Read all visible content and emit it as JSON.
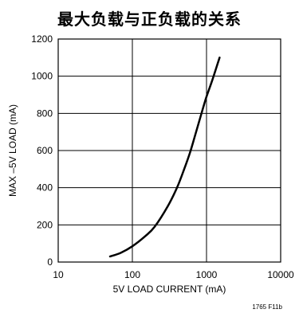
{
  "chart_data": {
    "type": "line",
    "title": "最大负载与正负载的关系",
    "xlabel": "5V LOAD CURRENT (mA)",
    "ylabel": "MAX –5V LOAD (mA)",
    "x_scale": "log",
    "xlim": [
      10,
      10000
    ],
    "ylim": [
      0,
      1200
    ],
    "x_ticks": [
      "10",
      "100",
      "1000",
      "10000"
    ],
    "y_ticks": [
      "0",
      "200",
      "400",
      "600",
      "800",
      "1000",
      "1200"
    ],
    "grid": true,
    "legend": "none",
    "line_color": "#000000",
    "series": [
      {
        "x": [
          50,
          70,
          100,
          150,
          200,
          300,
          400,
          500,
          600,
          700,
          800,
          900,
          1000,
          1200,
          1500
        ],
        "y": [
          30,
          50,
          85,
          140,
          190,
          300,
          400,
          500,
          590,
          680,
          760,
          830,
          890,
          980,
          1100
        ]
      }
    ],
    "figure_code": "1765 F11b"
  }
}
